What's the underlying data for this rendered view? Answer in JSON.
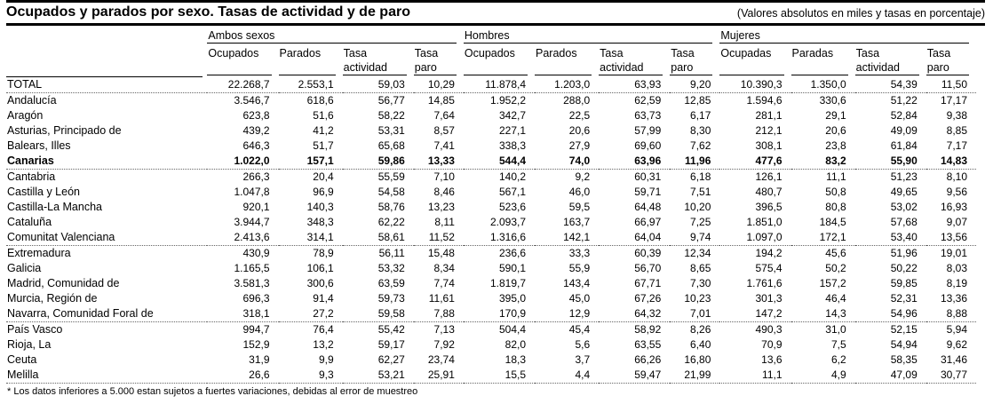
{
  "header": {
    "title": "Ocupados y parados por sexo. Tasas de actividad y de paro",
    "units_note": "(Valores absolutos en miles y tasas en porcentaje)"
  },
  "table": {
    "groups": [
      {
        "label": "Ambos sexos",
        "columns": [
          "Ocupados",
          "Parados",
          "Tasa actividad",
          "Tasa paro"
        ]
      },
      {
        "label": "Hombres",
        "columns": [
          "Ocupados",
          "Parados",
          "Tasa actividad",
          "Tasa paro"
        ]
      },
      {
        "label": "Mujeres",
        "columns": [
          "Ocupadas",
          "Paradas",
          "Tasa actividad",
          "Tasa paro"
        ]
      }
    ],
    "rows": [
      {
        "name": "TOTAL",
        "values": [
          "22.268,7",
          "2.553,1",
          "59,03",
          "10,29",
          "11.878,4",
          "1.203,0",
          "63,93",
          "9,20",
          "10.390,3",
          "1.350,0",
          "54,39",
          "11,50"
        ]
      },
      {
        "name": "Andalucía",
        "values": [
          "3.546,7",
          "618,6",
          "56,77",
          "14,85",
          "1.952,2",
          "288,0",
          "62,59",
          "12,85",
          "1.594,6",
          "330,6",
          "51,22",
          "17,17"
        ]
      },
      {
        "name": "Aragón",
        "values": [
          "623,8",
          "51,6",
          "58,22",
          "7,64",
          "342,7",
          "22,5",
          "63,73",
          "6,17",
          "281,1",
          "29,1",
          "52,84",
          "9,38"
        ]
      },
      {
        "name": "Asturias, Principado de",
        "values": [
          "439,2",
          "41,2",
          "53,31",
          "8,57",
          "227,1",
          "20,6",
          "57,99",
          "8,30",
          "212,1",
          "20,6",
          "49,09",
          "8,85"
        ]
      },
      {
        "name": "Balears, Illes",
        "values": [
          "646,3",
          "51,7",
          "65,68",
          "7,41",
          "338,3",
          "27,9",
          "69,60",
          "7,62",
          "308,1",
          "23,8",
          "61,84",
          "7,17"
        ]
      },
      {
        "name": "Canarias",
        "highlight": true,
        "values": [
          "1.022,0",
          "157,1",
          "59,86",
          "13,33",
          "544,4",
          "74,0",
          "63,96",
          "11,96",
          "477,6",
          "83,2",
          "55,90",
          "14,83"
        ]
      },
      {
        "name": "Cantabria",
        "values": [
          "266,3",
          "20,4",
          "55,59",
          "7,10",
          "140,2",
          "9,2",
          "60,31",
          "6,18",
          "126,1",
          "11,1",
          "51,23",
          "8,10"
        ]
      },
      {
        "name": "Castilla y León",
        "values": [
          "1.047,8",
          "96,9",
          "54,58",
          "8,46",
          "567,1",
          "46,0",
          "59,71",
          "7,51",
          "480,7",
          "50,8",
          "49,65",
          "9,56"
        ]
      },
      {
        "name": "Castilla-La Mancha",
        "values": [
          "920,1",
          "140,3",
          "58,76",
          "13,23",
          "523,6",
          "59,5",
          "64,48",
          "10,20",
          "396,5",
          "80,8",
          "53,02",
          "16,93"
        ]
      },
      {
        "name": "Cataluña",
        "values": [
          "3.944,7",
          "348,3",
          "62,22",
          "8,11",
          "2.093,7",
          "163,7",
          "66,97",
          "7,25",
          "1.851,0",
          "184,5",
          "57,68",
          "9,07"
        ]
      },
      {
        "name": "Comunitat Valenciana",
        "values": [
          "2.413,6",
          "314,1",
          "58,61",
          "11,52",
          "1.316,6",
          "142,1",
          "64,04",
          "9,74",
          "1.097,0",
          "172,1",
          "53,40",
          "13,56"
        ]
      },
      {
        "name": "Extremadura",
        "values": [
          "430,9",
          "78,9",
          "56,11",
          "15,48",
          "236,6",
          "33,3",
          "60,39",
          "12,34",
          "194,2",
          "45,6",
          "51,96",
          "19,01"
        ]
      },
      {
        "name": "Galicia",
        "values": [
          "1.165,5",
          "106,1",
          "53,32",
          "8,34",
          "590,1",
          "55,9",
          "56,70",
          "8,65",
          "575,4",
          "50,2",
          "50,22",
          "8,03"
        ]
      },
      {
        "name": "Madrid, Comunidad de",
        "values": [
          "3.581,3",
          "300,6",
          "63,59",
          "7,74",
          "1.819,7",
          "143,4",
          "67,71",
          "7,30",
          "1.761,6",
          "157,2",
          "59,85",
          "8,19"
        ]
      },
      {
        "name": "Murcia, Región de",
        "values": [
          "696,3",
          "91,4",
          "59,73",
          "11,61",
          "395,0",
          "45,0",
          "67,26",
          "10,23",
          "301,3",
          "46,4",
          "52,31",
          "13,36"
        ]
      },
      {
        "name": "Navarra, Comunidad Foral de",
        "values": [
          "318,1",
          "27,2",
          "59,58",
          "7,88",
          "170,9",
          "12,9",
          "64,32",
          "7,01",
          "147,2",
          "14,3",
          "54,96",
          "8,88"
        ]
      },
      {
        "name": "País Vasco",
        "values": [
          "994,7",
          "76,4",
          "55,42",
          "7,13",
          "504,4",
          "45,4",
          "58,92",
          "8,26",
          "490,3",
          "31,0",
          "52,15",
          "5,94"
        ]
      },
      {
        "name": "Rioja, La",
        "values": [
          "152,9",
          "13,2",
          "59,17",
          "7,92",
          "82,0",
          "5,6",
          "63,55",
          "6,40",
          "70,9",
          "7,5",
          "54,94",
          "9,62"
        ]
      },
      {
        "name": "Ceuta",
        "values": [
          "31,9",
          "9,9",
          "62,27",
          "23,74",
          "18,3",
          "3,7",
          "66,26",
          "16,80",
          "13,6",
          "6,2",
          "58,35",
          "31,46"
        ]
      },
      {
        "name": "Melilla",
        "values": [
          "26,6",
          "9,3",
          "53,21",
          "25,91",
          "15,5",
          "4,4",
          "59,47",
          "21,99",
          "11,1",
          "4,9",
          "47,09",
          "30,77"
        ]
      }
    ]
  },
  "footnote": "* Los datos inferiores a 5.000 estan sujetos a fuertes variaciones, debidas al error de muestreo"
}
